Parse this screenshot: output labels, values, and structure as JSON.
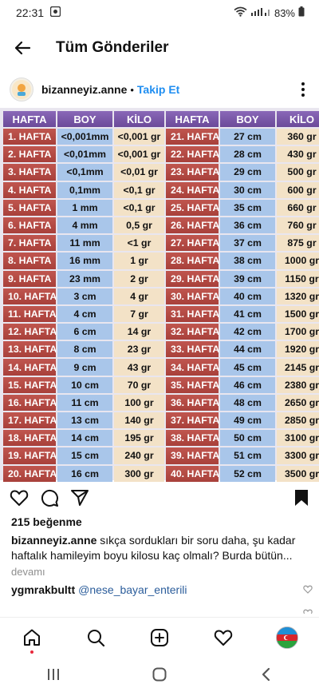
{
  "status": {
    "time": "22:31",
    "battery": "83%"
  },
  "header": {
    "title": "Tüm Gönderiler"
  },
  "post": {
    "username": "bizanneyiz.anne",
    "separator": "•",
    "follow": "Takip Et"
  },
  "table": {
    "headers": [
      "HAFTA",
      "BOY",
      "KİLO",
      "HAFTA",
      "BOY",
      "KİLO"
    ],
    "rows": [
      [
        "1. HAFTA",
        "<0,001mm",
        "<0,001 gr",
        "21. HAFTA",
        "27 cm",
        "360 gr"
      ],
      [
        "2. HAFTA",
        "<0,01mm",
        "<0,001 gr",
        "22. HAFTA",
        "28 cm",
        "430 gr"
      ],
      [
        "3. HAFTA",
        "<0,1mm",
        "<0,01 gr",
        "23. HAFTA",
        "29 cm",
        "500 gr"
      ],
      [
        "4. HAFTA",
        "0,1mm",
        "<0,1 gr",
        "24. HAFTA",
        "30 cm",
        "600 gr"
      ],
      [
        "5. HAFTA",
        "1 mm",
        "<0,1 gr",
        "25. HAFTA",
        "35 cm",
        "660 gr"
      ],
      [
        "6. HAFTA",
        "4 mm",
        "0,5 gr",
        "26. HAFTA",
        "36 cm",
        "760 gr"
      ],
      [
        "7. HAFTA",
        "11 mm",
        "<1 gr",
        "27. HAFTA",
        "37 cm",
        "875 gr"
      ],
      [
        "8. HAFTA",
        "16 mm",
        "1 gr",
        "28. HAFTA",
        "38 cm",
        "1000 gr"
      ],
      [
        "9. HAFTA",
        "23 mm",
        "2 gr",
        "29. HAFTA",
        "39 cm",
        "1150 gr"
      ],
      [
        "10. HAFTA",
        "3 cm",
        "4 gr",
        "30. HAFTA",
        "40 cm",
        "1320 gr"
      ],
      [
        "11. HAFTA",
        "4 cm",
        "7 gr",
        "31. HAFTA",
        "41 cm",
        "1500 gr"
      ],
      [
        "12. HAFTA",
        "6 cm",
        "14 gr",
        "32. HAFTA",
        "42 cm",
        "1700 gr"
      ],
      [
        "13. HAFTA",
        "8 cm",
        "23 gr",
        "33. HAFTA",
        "44 cm",
        "1920 gr"
      ],
      [
        "14. HAFTA",
        "9 cm",
        "43 gr",
        "34. HAFTA",
        "45 cm",
        "2145 gr"
      ],
      [
        "15. HAFTA",
        "10 cm",
        "70 gr",
        "35. HAFTA",
        "46 cm",
        "2380 gr"
      ],
      [
        "16. HAFTA",
        "11 cm",
        "100 gr",
        "36. HAFTA",
        "48 cm",
        "2650 gr"
      ],
      [
        "17. HAFTA",
        "13 cm",
        "140 gr",
        "37. HAFTA",
        "49 cm",
        "2850 gr"
      ],
      [
        "18. HAFTA",
        "14 cm",
        "195 gr",
        "38. HAFTA",
        "50 cm",
        "3100 gr"
      ],
      [
        "19. HAFTA",
        "15 cm",
        "240 gr",
        "39. HAFTA",
        "51 cm",
        "3300 gr"
      ],
      [
        "20. HAFTA",
        "16 cm",
        "300 gr",
        "40. HAFTA",
        "52 cm",
        "3500 gr"
      ]
    ]
  },
  "engagement": {
    "likes": "215 beğenme"
  },
  "caption": {
    "username": "bizanneyiz.anne",
    "text": "sıkça sordukları bir soru daha,  şu kadar haftalık hamileyim boyu kilosu kaç olmalı? Burda bütün...",
    "more": "devamı"
  },
  "comment": {
    "username": "ygmrakbultt",
    "mention": "@nese_bayar_enterili"
  },
  "icons": {
    "back": "back-arrow-icon",
    "more": "more-vertical-icon",
    "like": "heart-icon",
    "comment": "comment-icon",
    "share": "send-icon",
    "save": "bookmark-icon"
  },
  "colors": {
    "accent": "#1f8ef1",
    "week_cell": "#b34943",
    "header_cell": "#7a58a8",
    "length_cell": "#a9c6ea",
    "weight_cell": "#f3e2c7"
  }
}
